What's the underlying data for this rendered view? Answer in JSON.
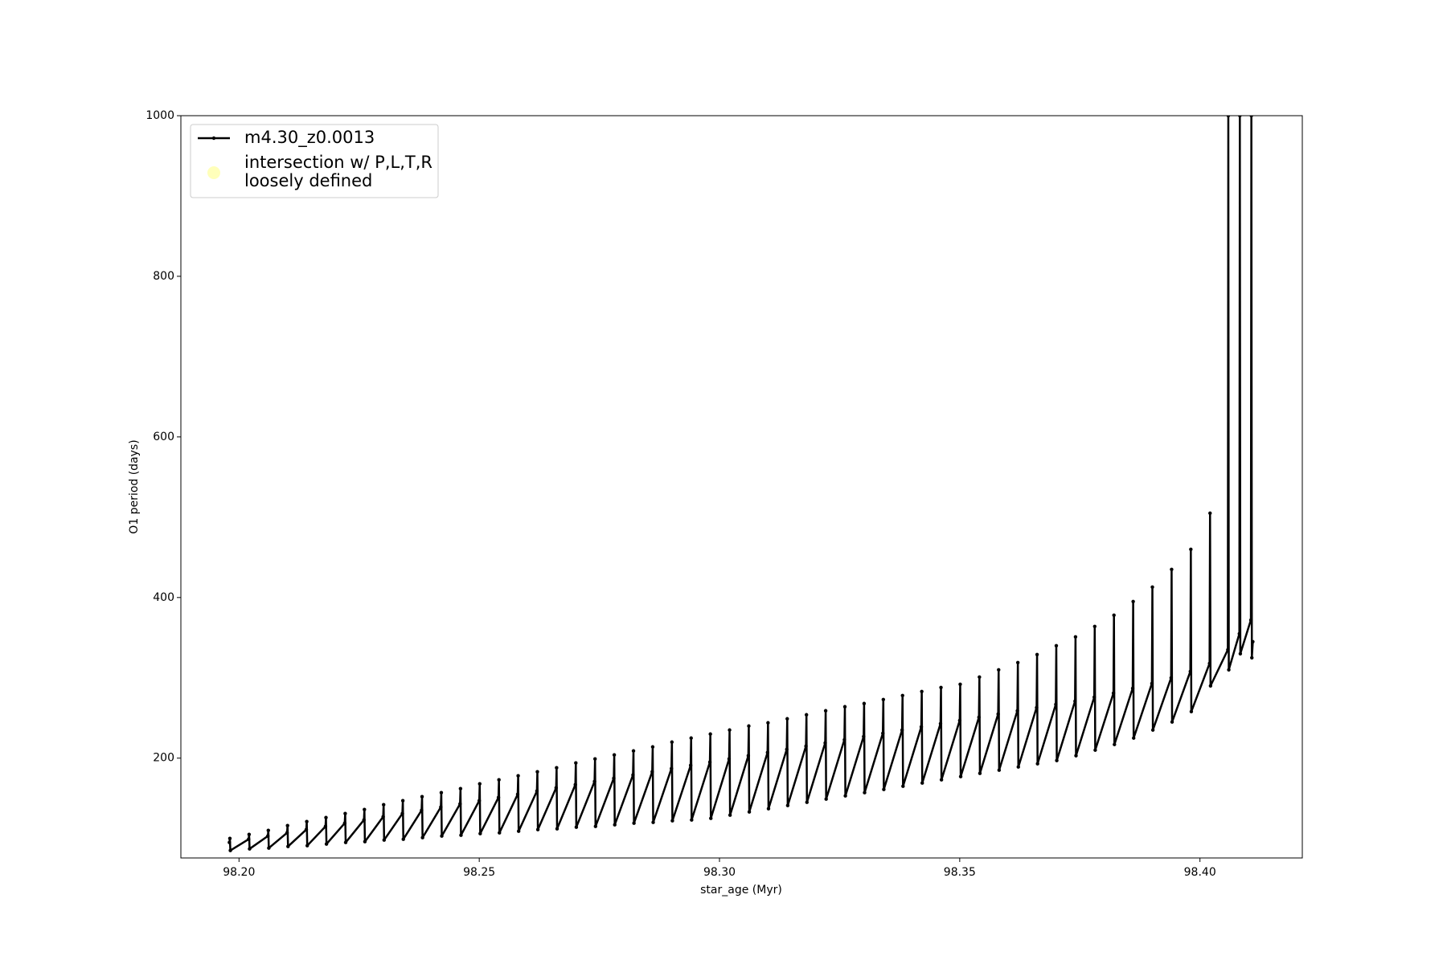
{
  "chart_data": {
    "type": "line",
    "xlabel": "star_age (Myr)",
    "ylabel": "O1 period (days)",
    "xlim": [
      98.1879,
      98.4213
    ],
    "ylim": [
      75.7,
      1000
    ],
    "xticks": [
      {
        "value": 98.2,
        "label": "98.20"
      },
      {
        "value": 98.25,
        "label": "98.25"
      },
      {
        "value": 98.3,
        "label": "98.30"
      },
      {
        "value": 98.35,
        "label": "98.35"
      },
      {
        "value": 98.4,
        "label": "98.40"
      }
    ],
    "yticks": [
      200,
      400,
      600,
      800,
      1000
    ],
    "grid": false,
    "legend": "upper left",
    "series": [
      {
        "name": "m4.30_z0.0013",
        "color": "#000000",
        "x": [
          98.198,
          98.1981,
          98.1982,
          98.202,
          98.2021,
          98.2022,
          98.206,
          98.2061,
          98.2062,
          98.21,
          98.2101,
          98.2102,
          98.214,
          98.2141,
          98.2142,
          98.218,
          98.2181,
          98.2182,
          98.222,
          98.2221,
          98.2222,
          98.226,
          98.2261,
          98.2262,
          98.23,
          98.2301,
          98.2302,
          98.234,
          98.2341,
          98.2342,
          98.238,
          98.2381,
          98.2382,
          98.242,
          98.2421,
          98.2422,
          98.246,
          98.2461,
          98.2462,
          98.25,
          98.2501,
          98.2502,
          98.254,
          98.2541,
          98.2542,
          98.258,
          98.2581,
          98.2582,
          98.262,
          98.2621,
          98.2622,
          98.266,
          98.2661,
          98.2662,
          98.27,
          98.2701,
          98.2702,
          98.274,
          98.2741,
          98.2742,
          98.278,
          98.2781,
          98.2782,
          98.282,
          98.2821,
          98.2822,
          98.286,
          98.2861,
          98.2862,
          98.29,
          98.2901,
          98.2902,
          98.294,
          98.2941,
          98.2942,
          98.298,
          98.2981,
          98.2982,
          98.302,
          98.3021,
          98.3022,
          98.306,
          98.3061,
          98.3062,
          98.31,
          98.3101,
          98.3102,
          98.314,
          98.3141,
          98.3142,
          98.318,
          98.3181,
          98.3182,
          98.322,
          98.3221,
          98.3222,
          98.326,
          98.3261,
          98.3262,
          98.33,
          98.3301,
          98.3302,
          98.334,
          98.3341,
          98.3342,
          98.338,
          98.3381,
          98.3382,
          98.342,
          98.3421,
          98.3422,
          98.346,
          98.3461,
          98.3462,
          98.35,
          98.3501,
          98.3502,
          98.354,
          98.3541,
          98.3542,
          98.358,
          98.3581,
          98.3582,
          98.362,
          98.3621,
          98.3622,
          98.366,
          98.3661,
          98.3662,
          98.37,
          98.3701,
          98.3702,
          98.374,
          98.3741,
          98.3742,
          98.378,
          98.3781,
          98.3782,
          98.382,
          98.3821,
          98.3822,
          98.386,
          98.3861,
          98.3862,
          98.39,
          98.3901,
          98.3902,
          98.394,
          98.3941,
          98.3942,
          98.398,
          98.3981,
          98.3982,
          98.402,
          98.4021,
          98.4022,
          98.4058,
          98.4059,
          98.406,
          98.4082,
          98.4083,
          98.4084,
          98.4106,
          98.4107,
          98.4108,
          98.411
        ],
        "values": [
          95,
          100,
          85,
          99,
          105,
          87,
          103,
          110,
          88,
          107,
          116,
          90,
          111,
          121,
          91,
          115,
          126,
          93,
          119,
          131,
          95,
          123,
          136,
          96,
          127,
          142,
          98,
          131,
          147,
          99,
          135,
          152,
          101,
          139,
          157,
          103,
          143,
          162,
          104,
          147,
          168,
          106,
          151,
          173,
          107,
          155,
          178,
          109,
          159,
          183,
          111,
          163,
          188,
          112,
          167,
          194,
          114,
          171,
          199,
          115,
          175,
          204,
          117,
          179,
          209,
          119,
          183,
          214,
          120,
          187,
          220,
          122,
          191,
          225,
          123,
          195,
          230,
          125,
          199,
          235,
          129,
          203,
          240,
          133,
          207,
          244,
          137,
          211,
          249,
          141,
          215,
          254,
          145,
          219,
          259,
          149,
          223,
          264,
          153,
          227,
          268,
          157,
          231,
          273,
          161,
          235,
          278,
          165,
          239,
          283,
          169,
          243,
          288,
          173,
          247,
          292,
          177,
          251,
          301,
          181,
          255,
          310,
          185,
          259,
          319,
          189,
          263,
          329,
          193,
          267,
          340,
          197,
          271,
          351,
          203,
          276,
          364,
          210,
          281,
          378,
          217,
          287,
          395,
          225,
          293,
          413,
          235,
          300,
          435,
          245,
          308,
          460,
          258,
          318,
          505,
          290,
          335,
          1000,
          310,
          355,
          1000,
          330,
          372,
          1000,
          325,
          345
        ]
      },
      {
        "name": "intersection w/ P,L,T,R\nloosely defined",
        "color": "#ffffb3",
        "x": [],
        "values": []
      }
    ]
  }
}
